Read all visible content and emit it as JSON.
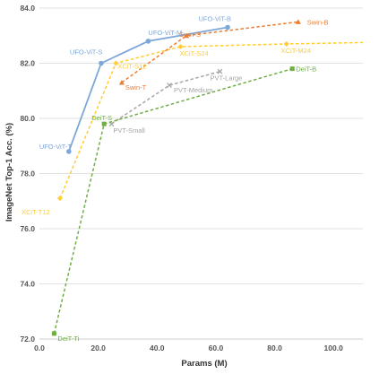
{
  "chart_data": {
    "type": "line",
    "title": "",
    "xlabel": "Params (M)",
    "ylabel": "ImageNet Top-1 Acc. (%)",
    "xlim": [
      0,
      110
    ],
    "ylim": [
      72,
      84
    ],
    "xticks": [
      0,
      20,
      40,
      60,
      80,
      100
    ],
    "xtick_labels": [
      "0.0",
      "20.0",
      "40.0",
      "60.0",
      "80.0",
      "100.0"
    ],
    "yticks": [
      72,
      74,
      76,
      78,
      80,
      82,
      84
    ],
    "ytick_labels": [
      "72.0",
      "74.0",
      "76.0",
      "78.0",
      "80.0",
      "82.0",
      "84.0"
    ],
    "grid": "horizontal",
    "series": [
      {
        "name": "UFO-ViT",
        "color": "#7da7d9",
        "dash": "solid",
        "marker": "circle",
        "points": [
          {
            "x": 10,
            "y": 78.8,
            "label": "UFO-ViT-T"
          },
          {
            "x": 21,
            "y": 82.0,
            "label": "UFO-ViT-S"
          },
          {
            "x": 37,
            "y": 82.8,
            "label": "UFO-ViT-M"
          },
          {
            "x": 64,
            "y": 83.3,
            "label": "UFO-ViT-B"
          }
        ]
      },
      {
        "name": "XCiT",
        "color": "#ffcc33",
        "dash": "dashed",
        "marker": "diamond",
        "points": [
          {
            "x": 7,
            "y": 77.1,
            "label": "XCiT-T12"
          },
          {
            "x": 26,
            "y": 82.0,
            "label": "XCiT-S12"
          },
          {
            "x": 48,
            "y": 82.6,
            "label": "XCiT-S24"
          },
          {
            "x": 84,
            "y": 82.7,
            "label": "XCiT-M24"
          },
          {
            "x": 110,
            "y": 82.75,
            "label": ""
          }
        ]
      },
      {
        "name": "Swin",
        "color": "#ed7d31",
        "dash": "dashed",
        "marker": "triangle",
        "points": [
          {
            "x": 28,
            "y": 81.3,
            "label": "Swin-T"
          },
          {
            "x": 50,
            "y": 83.0,
            "label": "Swin-S"
          },
          {
            "x": 88,
            "y": 83.5,
            "label": "Swin-B"
          }
        ]
      },
      {
        "name": "PVT",
        "color": "#a5a5a5",
        "dash": "dashed",
        "marker": "x",
        "points": [
          {
            "x": 24.5,
            "y": 79.8,
            "label": "PVT-Small"
          },
          {
            "x": 44.2,
            "y": 81.2,
            "label": "PVT-Medium"
          },
          {
            "x": 61.4,
            "y": 81.7,
            "label": "PVT-Large"
          }
        ]
      },
      {
        "name": "DeiT",
        "color": "#70ad47",
        "dash": "dashed",
        "marker": "square",
        "points": [
          {
            "x": 5,
            "y": 72.2,
            "label": "DeiT-Ti"
          },
          {
            "x": 22,
            "y": 79.8,
            "label": "DeiT-S"
          },
          {
            "x": 86,
            "y": 81.8,
            "label": "DeiT-B"
          }
        ]
      }
    ]
  }
}
